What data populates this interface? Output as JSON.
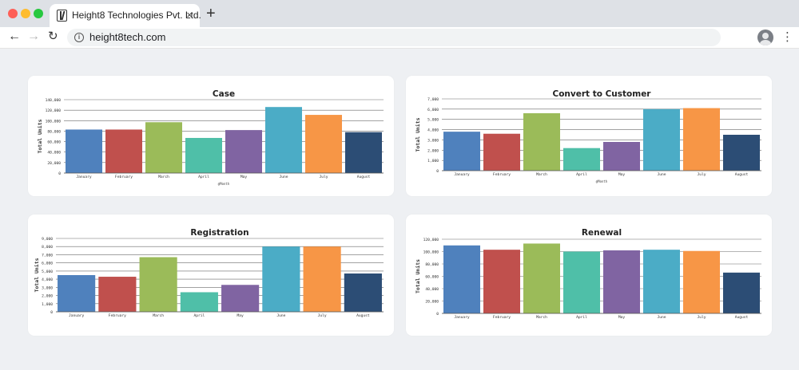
{
  "browser": {
    "tab_title": "Height8 Technologies Pvt. Ltd.",
    "tab_close": "×",
    "new_tab": "+",
    "url": "height8tech.com",
    "back": "←",
    "forward": "→",
    "reload": "↻",
    "info": "i",
    "menu": "⋮"
  },
  "colors": [
    "#4f81bd",
    "#c0504d",
    "#9bbb59",
    "#4fbfa8",
    "#8064a2",
    "#4bacc6",
    "#f79646",
    "#2c4d75"
  ],
  "chart_data": [
    {
      "type": "bar",
      "title": "Case",
      "ylabel": "Total Units",
      "xlabel": "@Month",
      "categories": [
        "January",
        "February",
        "March",
        "April",
        "May",
        "June",
        "July",
        "August"
      ],
      "values": [
        83000,
        83000,
        97000,
        67000,
        82000,
        126000,
        111000,
        78000
      ],
      "ylim": [
        0,
        140000
      ],
      "yticks": [
        0,
        20000,
        40000,
        60000,
        80000,
        100000,
        120000,
        140000
      ],
      "ytick_labels": [
        "0",
        "20,000",
        "40,000",
        "60,000",
        "80,000",
        "100,000",
        "120,000",
        "140,000"
      ],
      "grid": true,
      "legend": "none"
    },
    {
      "type": "bar",
      "title": "Convert to Customer",
      "ylabel": "Total Units",
      "xlabel": "@Month",
      "categories": [
        "January",
        "February",
        "March",
        "April",
        "May",
        "June",
        "July",
        "August"
      ],
      "values": [
        3800,
        3600,
        5600,
        2200,
        2800,
        6000,
        6100,
        3500
      ],
      "ylim": [
        0,
        7000
      ],
      "yticks": [
        0,
        1000,
        2000,
        3000,
        4000,
        5000,
        6000,
        7000
      ],
      "ytick_labels": [
        "0",
        "1,000",
        "2,000",
        "3,000",
        "4,000",
        "5,000",
        "6,000",
        "7,000"
      ],
      "grid": true,
      "legend": "none"
    },
    {
      "type": "bar",
      "title": "Registration",
      "ylabel": "Total Units",
      "xlabel": "",
      "categories": [
        "January",
        "February",
        "March",
        "April",
        "May",
        "June",
        "July",
        "August"
      ],
      "values": [
        4500,
        4300,
        6700,
        2400,
        3300,
        8000,
        8000,
        4700
      ],
      "ylim": [
        0,
        9000
      ],
      "yticks": [
        0,
        1000,
        2000,
        3000,
        4000,
        5000,
        6000,
        7000,
        8000,
        9000
      ],
      "ytick_labels": [
        "0",
        "1,000",
        "2,000",
        "3,000",
        "4,000",
        "5,000",
        "6,000",
        "7,000",
        "8,000",
        "9,000"
      ],
      "grid": true,
      "legend": "none"
    },
    {
      "type": "bar",
      "title": "Renewal",
      "ylabel": "Total Units",
      "xlabel": "",
      "categories": [
        "January",
        "February",
        "March",
        "April",
        "May",
        "June",
        "July",
        "August"
      ],
      "values": [
        110000,
        103000,
        113000,
        100000,
        102000,
        103000,
        101000,
        66000
      ],
      "ylim": [
        0,
        120000
      ],
      "yticks": [
        0,
        20000,
        40000,
        60000,
        80000,
        100000,
        120000
      ],
      "ytick_labels": [
        "0",
        "20,000",
        "40,000",
        "60,000",
        "80,000",
        "100,000",
        "120,000"
      ],
      "grid": true,
      "legend": "none"
    }
  ]
}
